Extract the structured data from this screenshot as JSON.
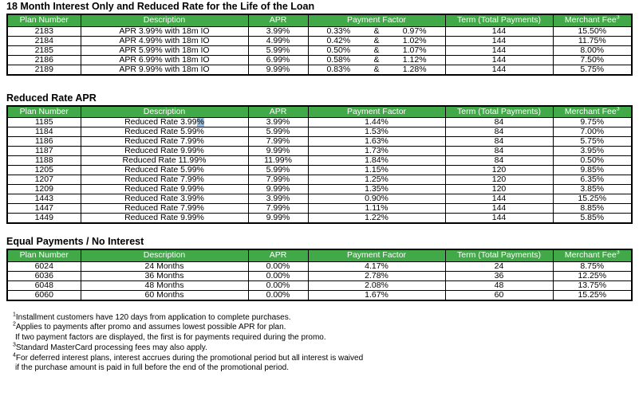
{
  "colors": {
    "header_bg": "#42A948",
    "header_text": "#FFFFFF",
    "border": "#000000",
    "selection": "#9FBFDF"
  },
  "sections": [
    {
      "title": "18 Month Interest Only and Reduced Rate for the Life of the Loan",
      "columns": [
        {
          "label": "Plan Number"
        },
        {
          "label": "Description"
        },
        {
          "label": "APR"
        },
        {
          "label": "Payment Factor"
        },
        {
          "label": "Term (Total Payments)"
        },
        {
          "label": "Merchant Fee",
          "sup": "3"
        }
      ],
      "rows": [
        [
          "2183",
          "APR 3.99% with 18m IO",
          "3.99%",
          {
            "split": [
              "0.33%",
              "&",
              "0.97%"
            ]
          },
          "144",
          "15.50%"
        ],
        [
          "2184",
          "APR 4.99% with 18m IO",
          "4.99%",
          {
            "split": [
              "0.42%",
              "&",
              "1.02%"
            ]
          },
          "144",
          "11.75%"
        ],
        [
          "2185",
          "APR 5.99% with 18m IO",
          "5.99%",
          {
            "split": [
              "0.50%",
              "&",
              "1.07%"
            ]
          },
          "144",
          "8.00%"
        ],
        [
          "2186",
          "APR 6.99% with 18m IO",
          "6.99%",
          {
            "split": [
              "0.58%",
              "&",
              "1.12%"
            ]
          },
          "144",
          "7.50%"
        ],
        [
          "2189",
          "APR 9.99% with 18m IO",
          "9.99%",
          {
            "split": [
              "0.83%",
              "&",
              "1.28%"
            ]
          },
          "144",
          "5.75%"
        ]
      ]
    },
    {
      "title": "Reduced Rate APR",
      "columns": [
        {
          "label": "Plan Number"
        },
        {
          "label": "Description"
        },
        {
          "label": "APR"
        },
        {
          "label": "Payment Factor"
        },
        {
          "label": "Term (Total Payments)"
        },
        {
          "label": "Merchant Fee",
          "sup": "3"
        }
      ],
      "rows": [
        [
          "1185",
          {
            "pre": "Reduced Rate 3.99",
            "sel": "%"
          },
          "3.99%",
          "1.44%",
          "84",
          "9.75%"
        ],
        [
          "1184",
          "Reduced Rate 5.99%",
          "5.99%",
          "1.53%",
          "84",
          "7.00%"
        ],
        [
          "1186",
          "Reduced Rate 7.99%",
          "7.99%",
          "1.63%",
          "84",
          "5.75%"
        ],
        [
          "1187",
          "Reduced Rate 9.99%",
          "9.99%",
          "1.73%",
          "84",
          "3.95%"
        ],
        [
          "1188",
          "Reduced Rate 11.99%",
          "11.99%",
          "1.84%",
          "84",
          "0.50%"
        ],
        [
          "1205",
          "Reduced Rate 5.99%",
          "5.99%",
          "1.15%",
          "120",
          "9.85%"
        ],
        [
          "1207",
          "Reduced Rate 7.99%",
          "7.99%",
          "1.25%",
          "120",
          "6.35%"
        ],
        [
          "1209",
          "Reduced Rate 9.99%",
          "9.99%",
          "1.35%",
          "120",
          "3.85%"
        ],
        [
          "1443",
          "Reduced Rate 3.99%",
          "3.99%",
          "0.90%",
          "144",
          "15.25%"
        ],
        [
          "1447",
          "Reduced Rate 7.99%",
          "7.99%",
          "1.11%",
          "144",
          "8.85%"
        ],
        [
          "1449",
          "Reduced Rate 9.99%",
          "9.99%",
          "1.22%",
          "144",
          "5.85%"
        ]
      ]
    },
    {
      "title": "Equal Payments / No Interest",
      "columns": [
        {
          "label": "Plan Number"
        },
        {
          "label": "Description"
        },
        {
          "label": "APR"
        },
        {
          "label": "Payment Factor"
        },
        {
          "label": "Term (Total Payments)"
        },
        {
          "label": "Merchant Fee",
          "sup": "3"
        }
      ],
      "rows": [
        [
          "6024",
          "24 Months",
          "0.00%",
          "4.17%",
          "24",
          "8.75%"
        ],
        [
          "6036",
          "36 Months",
          "0.00%",
          "2.78%",
          "36",
          "12.25%"
        ],
        [
          "6048",
          "48 Months",
          "0.00%",
          "2.08%",
          "48",
          "13.75%"
        ],
        [
          "6060",
          "60 Months",
          "0.00%",
          "1.67%",
          "60",
          "15.25%"
        ]
      ]
    }
  ],
  "footnotes": [
    {
      "sup": "1",
      "lines": [
        "Installment customers have 120 days from application to complete purchases."
      ]
    },
    {
      "sup": "2",
      "lines": [
        "Applies to payments after promo and assumes lowest possible APR for plan.",
        "If two payment factors are displayed, the first is for payments required during the promo."
      ]
    },
    {
      "sup": "3",
      "lines": [
        "Standard MasterCard processing fees may also apply."
      ]
    },
    {
      "sup": "4",
      "lines": [
        "For deferred interest plans, interest accrues during the promotional period but all interest is waived",
        "if the purchase amount is paid in full before the end of the promotional period."
      ]
    }
  ]
}
